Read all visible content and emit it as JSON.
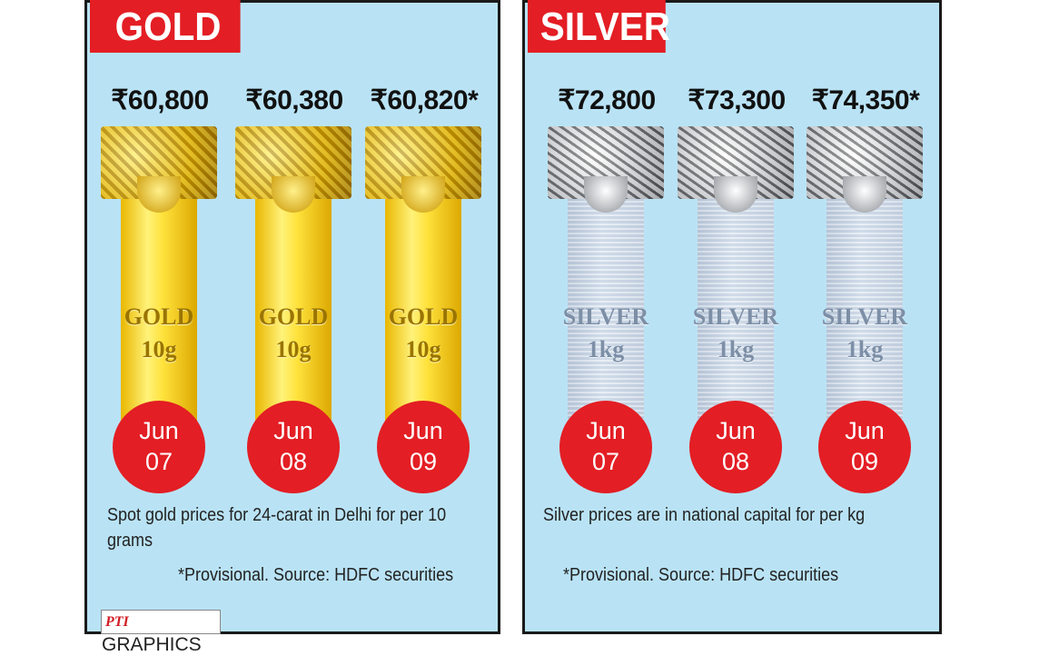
{
  "gold": {
    "title": "GOLD",
    "items": [
      {
        "price": "₹60,800",
        "metal": "GOLD",
        "weight": "10g",
        "month": "Jun",
        "day": "07"
      },
      {
        "price": "₹60,380",
        "metal": "GOLD",
        "weight": "10g",
        "month": "Jun",
        "day": "08"
      },
      {
        "price": "₹60,820*",
        "metal": "GOLD",
        "weight": "10g",
        "month": "Jun",
        "day": "09"
      }
    ],
    "note": "Spot gold prices for 24-carat in Delhi for per 10 grams",
    "source": "*Provisional.  Source: HDFC securities"
  },
  "silver": {
    "title": "SILVER",
    "items": [
      {
        "price": "₹72,800",
        "metal": "SILVER",
        "weight": "1kg",
        "month": "Jun",
        "day": "07"
      },
      {
        "price": "₹73,300",
        "metal": "SILVER",
        "weight": "1kg",
        "month": "Jun",
        "day": "08"
      },
      {
        "price": "₹74,350*",
        "metal": "SILVER",
        "weight": "1kg",
        "month": "Jun",
        "day": "09"
      }
    ],
    "note": "Silver prices are in national capital for per kg",
    "source": "*Provisional.  Source: HDFC securities"
  },
  "logo": {
    "pti": "PTI",
    "text": "GRAPHICS"
  },
  "colors": {
    "panel_bg": "#b9e3f5",
    "accent_red": "#e31e24",
    "gold": "#f2c400",
    "silver": "#c9d4e2"
  }
}
